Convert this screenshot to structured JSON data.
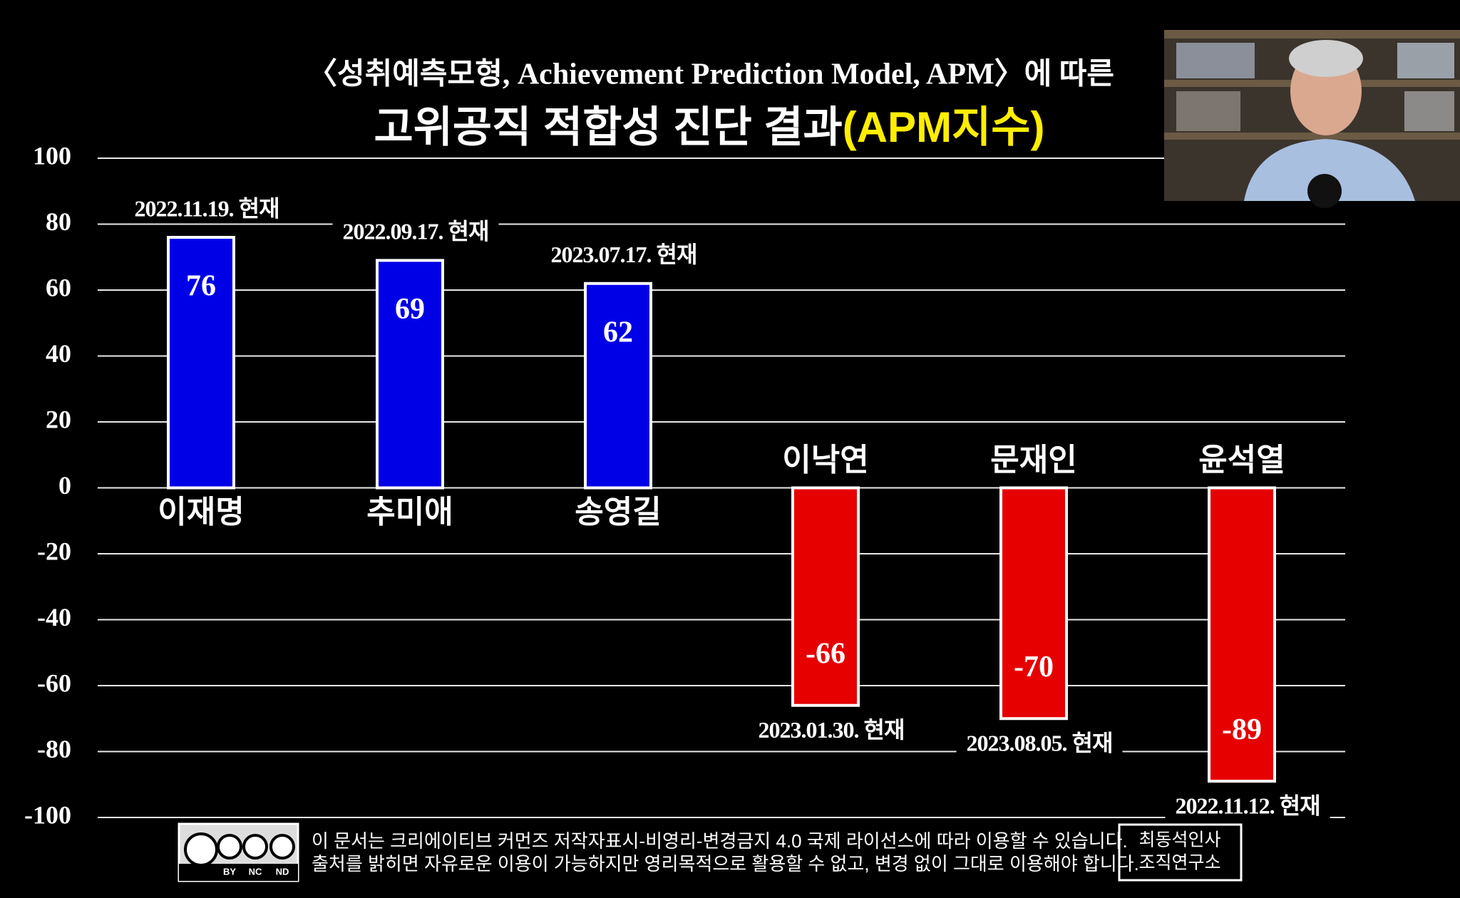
{
  "chart_data": {
    "type": "bar",
    "subtitle": "〈성취예측모형, Achievement Prediction Model, APM〉에 따른",
    "title": "고위공직 적합성 진단 결과",
    "title_highlight": "(APM지수)",
    "categories": [
      "이재명",
      "추미애",
      "송영길",
      "이낙연",
      "문재인",
      "윤석열"
    ],
    "values": [
      76,
      69,
      62,
      -66,
      -70,
      -89
    ],
    "annotations": [
      "2022.11.19. 현재",
      "2022.09.17. 현재",
      "2023.07.17. 현재",
      "2023.01.30. 현재",
      "2023.08.05. 현재",
      "2022.11.12. 현재"
    ],
    "colors": {
      "positive": "#0000e6",
      "negative": "#e60000"
    },
    "ylim": [
      -100,
      100
    ],
    "yticks": [
      -100,
      -80,
      -60,
      -40,
      -20,
      0,
      20,
      40,
      60,
      80,
      100
    ],
    "grid": true
  },
  "footer": {
    "cc_badge": [
      "BY",
      "NC",
      "ND"
    ],
    "license": [
      "이 문서는 크리에이티브 커먼즈 저작자표시-비영리-변경금지 4.0 국제 라이선스에 따라 이용할 수 있습니다.",
      "출처를 밝히면 자유로운 이용이 가능하지만 영리목적으로 활용할 수 없고, 변경 없이 그대로 이용해야 합니다."
    ],
    "organization": [
      "최동석인사",
      "조직연구소"
    ]
  }
}
